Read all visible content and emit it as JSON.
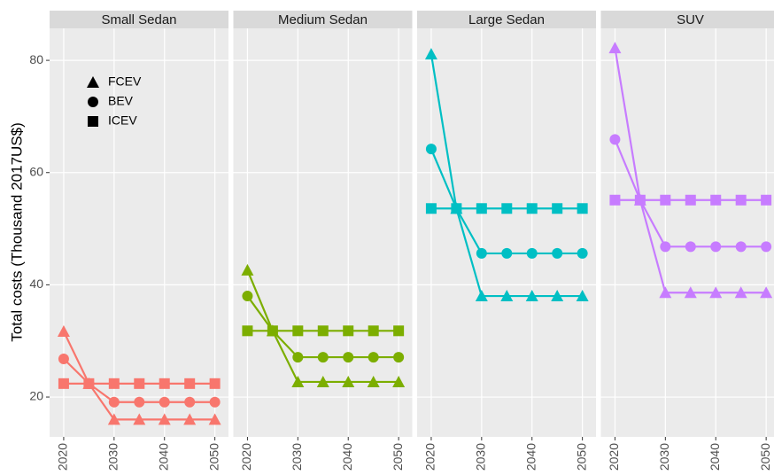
{
  "chart_data": [
    {
      "type": "line",
      "title": "Small Sedan",
      "ylabel": "Total costs (Thousand 2017US$)",
      "x": [
        2020,
        2025,
        2030,
        2035,
        2040,
        2045,
        2050
      ],
      "xlim": [
        2017.2,
        2052.7
      ],
      "xticks": [
        2020,
        2030,
        2040,
        2050
      ],
      "ylim": [
        12.9,
        85.7
      ],
      "yticks": [
        20,
        40,
        60,
        80
      ],
      "grid": true,
      "series": [
        {
          "name": "FCEV",
          "marker": "triangle",
          "color": "#F8766D",
          "values": [
            31.7,
            22.4,
            16.0,
            16.0,
            16.0,
            16.0,
            16.0
          ]
        },
        {
          "name": "BEV",
          "marker": "circle",
          "color": "#F8766D",
          "values": [
            26.8,
            22.4,
            19.1,
            19.1,
            19.1,
            19.1,
            19.1
          ]
        },
        {
          "name": "ICEV",
          "marker": "square",
          "color": "#F8766D",
          "values": [
            22.4,
            22.4,
            22.4,
            22.4,
            22.4,
            22.4,
            22.4
          ]
        }
      ]
    },
    {
      "type": "line",
      "title": "Medium Sedan",
      "x": [
        2020,
        2025,
        2030,
        2035,
        2040,
        2045,
        2050
      ],
      "xlim": [
        2017.2,
        2052.7
      ],
      "xticks": [
        2020,
        2030,
        2040,
        2050
      ],
      "ylim": [
        12.9,
        85.7
      ],
      "yticks": [
        20,
        40,
        60,
        80
      ],
      "grid": true,
      "series": [
        {
          "name": "FCEV",
          "marker": "triangle",
          "color": "#7CAE00",
          "values": [
            42.6,
            31.8,
            22.7,
            22.7,
            22.7,
            22.7,
            22.7
          ]
        },
        {
          "name": "BEV",
          "marker": "circle",
          "color": "#7CAE00",
          "values": [
            38.0,
            31.8,
            27.1,
            27.1,
            27.1,
            27.1,
            27.1
          ]
        },
        {
          "name": "ICEV",
          "marker": "square",
          "color": "#7CAE00",
          "values": [
            31.8,
            31.8,
            31.8,
            31.8,
            31.8,
            31.8,
            31.8
          ]
        }
      ]
    },
    {
      "type": "line",
      "title": "Large Sedan",
      "x": [
        2020,
        2025,
        2030,
        2035,
        2040,
        2045,
        2050
      ],
      "xlim": [
        2017.2,
        2052.7
      ],
      "xticks": [
        2020,
        2030,
        2040,
        2050
      ],
      "ylim": [
        12.9,
        85.7
      ],
      "yticks": [
        20,
        40,
        60,
        80
      ],
      "grid": true,
      "series": [
        {
          "name": "FCEV",
          "marker": "triangle",
          "color": "#00BFC4",
          "values": [
            81.1,
            53.6,
            38.0,
            38.0,
            38.0,
            38.0,
            38.0
          ]
        },
        {
          "name": "BEV",
          "marker": "circle",
          "color": "#00BFC4",
          "values": [
            64.2,
            53.6,
            45.6,
            45.6,
            45.6,
            45.6,
            45.6
          ]
        },
        {
          "name": "ICEV",
          "marker": "square",
          "color": "#00BFC4",
          "values": [
            53.6,
            53.6,
            53.6,
            53.6,
            53.6,
            53.6,
            53.6
          ]
        }
      ]
    },
    {
      "type": "line",
      "title": "SUV",
      "x": [
        2020,
        2025,
        2030,
        2035,
        2040,
        2045,
        2050
      ],
      "xlim": [
        2017.2,
        2052.7
      ],
      "xticks": [
        2020,
        2030,
        2040,
        2050
      ],
      "ylim": [
        12.9,
        85.7
      ],
      "yticks": [
        20,
        40,
        60,
        80
      ],
      "grid": true,
      "series": [
        {
          "name": "FCEV",
          "marker": "triangle",
          "color": "#C77CFF",
          "values": [
            82.2,
            55.1,
            38.6,
            38.6,
            38.6,
            38.6,
            38.6
          ]
        },
        {
          "name": "BEV",
          "marker": "circle",
          "color": "#C77CFF",
          "values": [
            65.9,
            55.1,
            46.8,
            46.8,
            46.8,
            46.8,
            46.8
          ]
        },
        {
          "name": "ICEV",
          "marker": "square",
          "color": "#C77CFF",
          "values": [
            55.1,
            55.1,
            55.1,
            55.1,
            55.1,
            55.1,
            55.1
          ]
        }
      ]
    }
  ]
}
